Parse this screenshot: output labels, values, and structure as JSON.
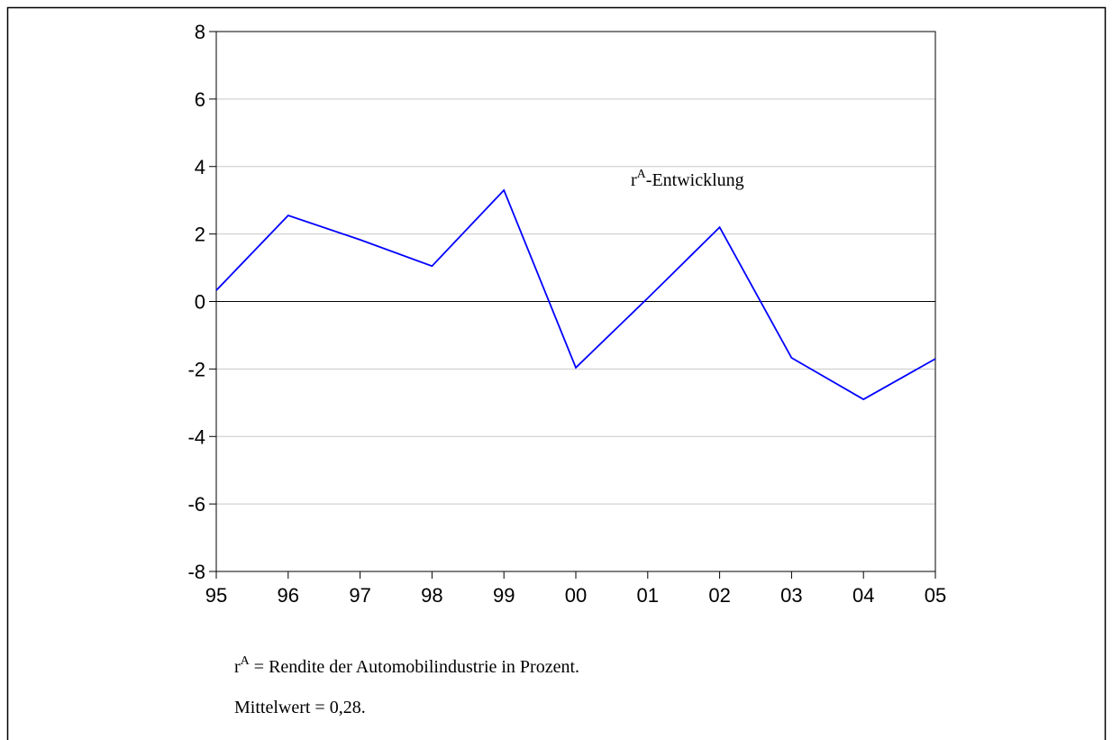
{
  "chart_data": {
    "type": "line",
    "categories": [
      "95",
      "96",
      "97",
      "98",
      "99",
      "00",
      "01",
      "02",
      "03",
      "04",
      "05"
    ],
    "values": [
      0.33,
      2.55,
      1.83,
      1.05,
      3.3,
      -1.96,
      0.1,
      2.2,
      -1.67,
      -2.9,
      -1.7
    ],
    "color": "#0000ff",
    "ylim": [
      -8,
      8
    ],
    "yticks": [
      -8,
      -6,
      -4,
      -2,
      0,
      2,
      4,
      6,
      8
    ],
    "grid": true,
    "annotation": {
      "base": "r",
      "sup": "A",
      "rest": "-Entwicklung"
    },
    "notes": [
      {
        "base": "r",
        "sup": "A",
        "rest": " = Rendite der Automobilindustrie in Prozent."
      },
      {
        "base": "Mittelwert = 0,28."
      }
    ]
  }
}
